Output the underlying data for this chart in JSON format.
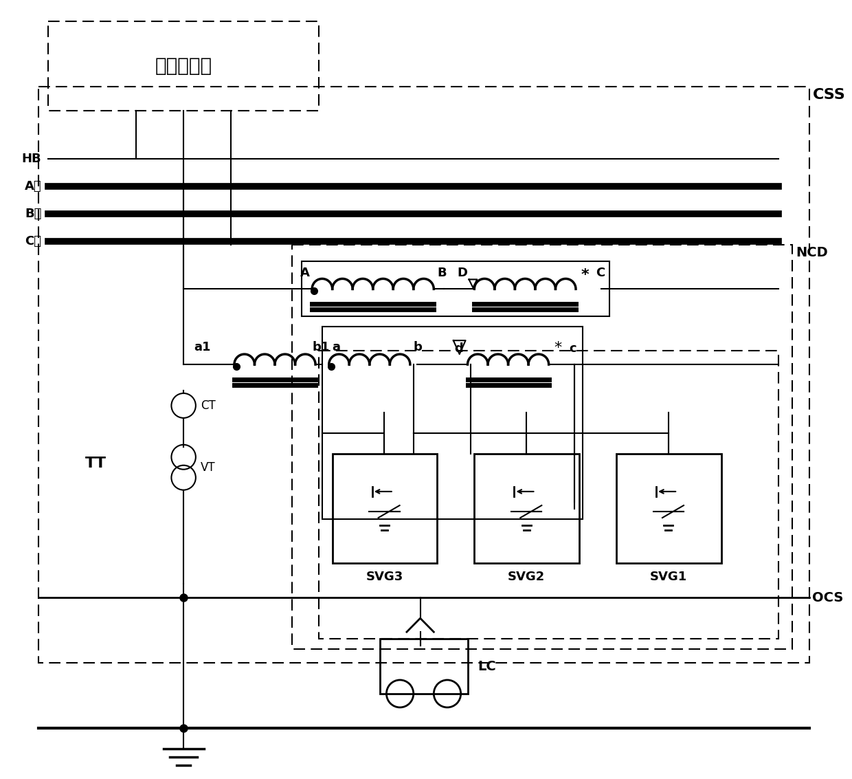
{
  "bg_color": "#ffffff",
  "lc": "#000000",
  "labels": {
    "grid_substation": "电网变电站",
    "CSS": "CSS",
    "NCD": "NCD",
    "OCS": "OCS",
    "LC": "LC",
    "TT": "TT",
    "CT": "CT",
    "VT": "VT",
    "HB": "HB",
    "A_phase": "A相",
    "B_phase": "B相",
    "C_phase": "C相",
    "SVG1": "SVG1",
    "SVG2": "SVG2",
    "SVG3": "SVG3",
    "A": "A",
    "B": "B",
    "C": "C",
    "D": "D",
    "a1": "a1",
    "b1": "b1",
    "a": "a",
    "b": "b",
    "c": "c",
    "d": "d"
  }
}
